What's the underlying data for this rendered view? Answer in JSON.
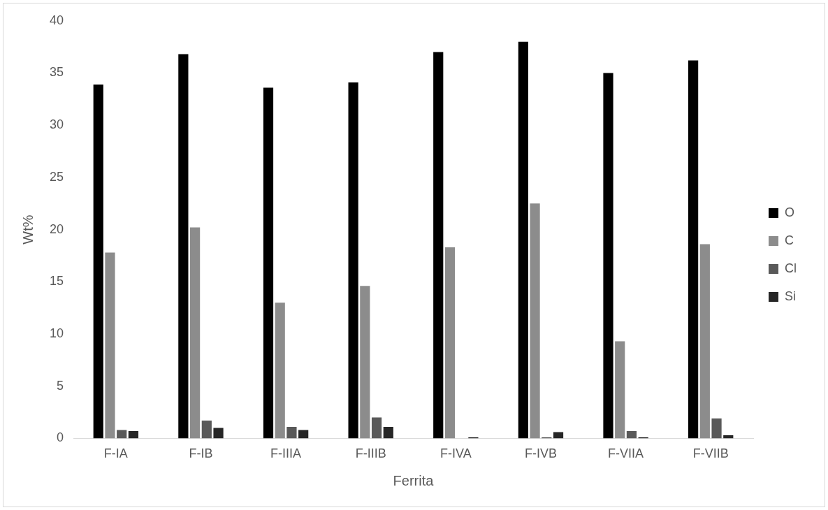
{
  "chart_data": {
    "type": "bar",
    "xlabel": "Ferrita",
    "ylabel": "Wt%",
    "categories": [
      "F-IA",
      "F-IB",
      "F-IIIA",
      "F-IIIB",
      "F-IVA",
      "F-IVB",
      "F-VIIA",
      "F-VIIB"
    ],
    "series": [
      {
        "name": "O",
        "color": "#000000",
        "values": [
          33.9,
          36.8,
          33.6,
          34.1,
          37.0,
          38.0,
          35.0,
          36.2
        ]
      },
      {
        "name": "C",
        "color": "#8c8c8c",
        "values": [
          17.8,
          20.2,
          13.0,
          14.6,
          18.3,
          22.5,
          9.3,
          18.6
        ]
      },
      {
        "name": "Cl",
        "color": "#595959",
        "values": [
          0.8,
          1.7,
          1.1,
          2.0,
          0,
          0.1,
          0.7,
          1.9
        ]
      },
      {
        "name": "Si",
        "color": "#262626",
        "values": [
          0.7,
          1.0,
          0.8,
          1.1,
          0.1,
          0.6,
          0.1,
          0.3
        ]
      }
    ],
    "ylim": [
      0,
      40
    ],
    "yticks": [
      0,
      5,
      10,
      15,
      20,
      25,
      30,
      35,
      40
    ],
    "grid": false,
    "legend": "right"
  }
}
